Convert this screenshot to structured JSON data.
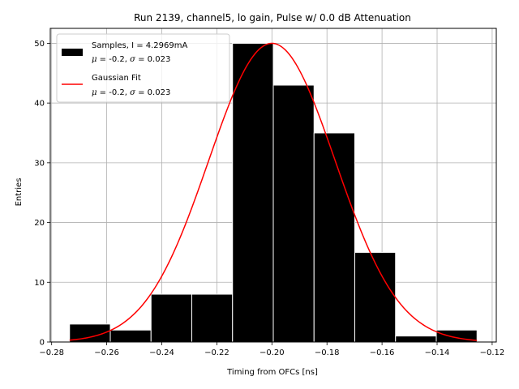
{
  "chart_data": {
    "type": "bar",
    "title": "Run 2139, channel5, lo gain, Pulse w/ 0.0 dB Attenuation",
    "xlabel": "Timing from OFCs [ns]",
    "ylabel": "Entries",
    "xlim": [
      -0.2805,
      -0.1185
    ],
    "ylim": [
      0,
      52.5
    ],
    "grid": true,
    "bin_edges": [
      -0.2735,
      -0.2587,
      -0.2439,
      -0.2291,
      -0.2143,
      -0.1995,
      -0.1847,
      -0.1699,
      -0.1551,
      -0.1403,
      -0.1255
    ],
    "counts": [
      3,
      2,
      8,
      8,
      50,
      43,
      35,
      15,
      1,
      2
    ],
    "bar_color": "#000000",
    "bar_edge_color": "#ffffff",
    "fit": {
      "name": "Gaussian Fit",
      "mu": -0.2,
      "sigma": 0.023,
      "amplitude": 50,
      "x_range": [
        -0.2735,
        -0.1255
      ],
      "color": "#ff0000"
    },
    "xticks": [
      -0.28,
      -0.26,
      -0.24,
      -0.22,
      -0.2,
      -0.18,
      -0.16,
      -0.14,
      -0.12
    ],
    "xtick_labels": [
      "−0.28",
      "−0.26",
      "−0.24",
      "−0.22",
      "−0.20",
      "−0.18",
      "−0.16",
      "−0.14",
      "−0.12"
    ],
    "yticks": [
      0,
      10,
      20,
      30,
      40,
      50
    ],
    "ytick_labels": [
      "0",
      "10",
      "20",
      "30",
      "40",
      "50"
    ],
    "legend": {
      "location": "top-left",
      "entries": [
        {
          "line1": "Samples, I = 4.2969mA",
          "line2_prefix": "",
          "mu_sym": "μ",
          "mid": " = -0.2, ",
          "sigma_sym": "σ",
          "tail": " = 0.023"
        },
        {
          "line1": "Gaussian Fit",
          "mu_sym": "μ",
          "mid": " = -0.2, ",
          "sigma_sym": "σ",
          "tail": " = 0.023"
        }
      ]
    }
  }
}
